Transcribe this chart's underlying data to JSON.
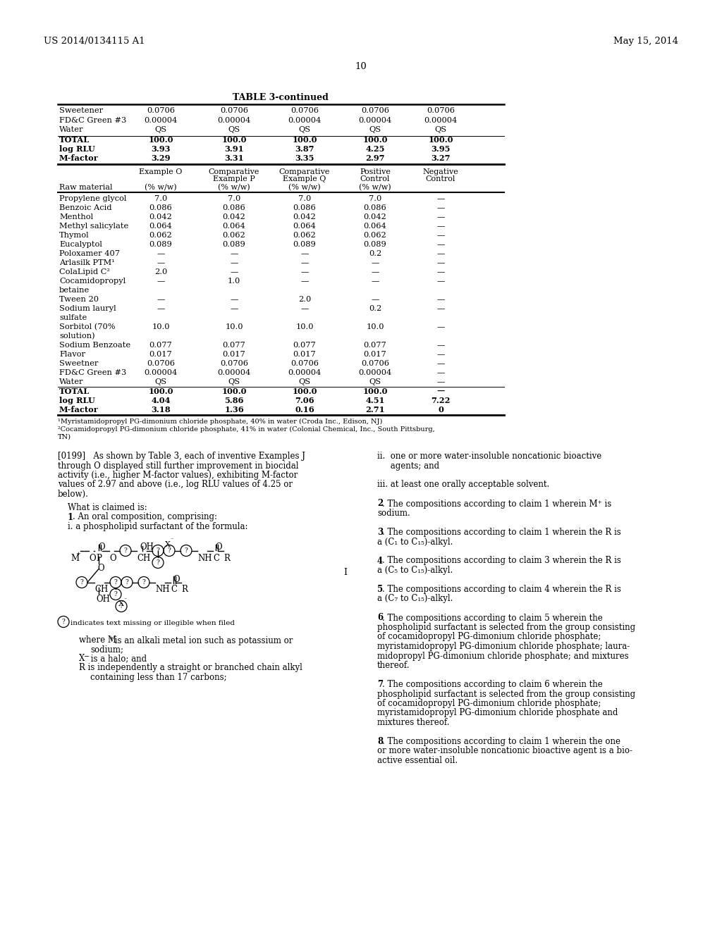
{
  "page_header_left": "US 2014/0134115 A1",
  "page_header_right": "May 15, 2014",
  "page_number": "10",
  "table_title": "TABLE 3-continued",
  "bg_color": "#ffffff",
  "table1_rows": [
    [
      "Sweetener",
      "0.0706",
      "0.0706",
      "0.0706",
      "0.0706",
      "0.0706"
    ],
    [
      "FD&C Green #3",
      "0.00004",
      "0.00004",
      "0.00004",
      "0.00004",
      "0.00004"
    ],
    [
      "Water",
      "QS",
      "QS",
      "QS",
      "QS",
      "QS"
    ],
    [
      "TOTAL",
      "100.0",
      "100.0",
      "100.0",
      "100.0",
      "100.0"
    ],
    [
      "log RLU",
      "3.93",
      "3.91",
      "3.87",
      "4.25",
      "3.95"
    ],
    [
      "M-factor",
      "3.29",
      "3.31",
      "3.35",
      "2.97",
      "3.27"
    ]
  ],
  "table1_bold": [
    3,
    4,
    5
  ],
  "table2_rows": [
    [
      "Propylene glycol",
      "7.0",
      "7.0",
      "7.0",
      "7.0",
      "—"
    ],
    [
      "Benzoic Acid",
      "0.086",
      "0.086",
      "0.086",
      "0.086",
      "—"
    ],
    [
      "Menthol",
      "0.042",
      "0.042",
      "0.042",
      "0.042",
      "—"
    ],
    [
      "Methyl salicylate",
      "0.064",
      "0.064",
      "0.064",
      "0.064",
      "—"
    ],
    [
      "Thymol",
      "0.062",
      "0.062",
      "0.062",
      "0.062",
      "—"
    ],
    [
      "Eucalyptol",
      "0.089",
      "0.089",
      "0.089",
      "0.089",
      "—"
    ],
    [
      "Poloxamer 407",
      "—",
      "—",
      "—",
      "0.2",
      "—"
    ],
    [
      "Arlasilk PTM¹",
      "—",
      "—",
      "—",
      "—",
      "—"
    ],
    [
      "ColaLipid C²",
      "2.0",
      "—",
      "—",
      "—",
      "—"
    ],
    [
      "Cocamidopropyl",
      "—",
      "1.0",
      "—",
      "—",
      "—"
    ],
    [
      "betaine",
      "",
      "",
      "",
      "",
      ""
    ],
    [
      "Tween 20",
      "—",
      "—",
      "2.0",
      "—",
      "—"
    ],
    [
      "Sodium lauryl",
      "—",
      "—",
      "—",
      "0.2",
      "—"
    ],
    [
      "sulfate",
      "",
      "",
      "",
      "",
      ""
    ],
    [
      "Sorbitol (70%",
      "10.0",
      "10.0",
      "10.0",
      "10.0",
      "—"
    ],
    [
      "solution)",
      "",
      "",
      "",
      "",
      ""
    ],
    [
      "Sodium Benzoate",
      "0.077",
      "0.077",
      "0.077",
      "0.077",
      "—"
    ],
    [
      "Flavor",
      "0.017",
      "0.017",
      "0.017",
      "0.017",
      "—"
    ],
    [
      "Sweetner",
      "0.0706",
      "0.0706",
      "0.0706",
      "0.0706",
      "—"
    ],
    [
      "FD&C Green #3",
      "0.00004",
      "0.00004",
      "0.00004",
      "0.00004",
      "—"
    ],
    [
      "Water",
      "QS",
      "QS",
      "QS",
      "QS",
      "—"
    ],
    [
      "TOTAL",
      "100.0",
      "100.0",
      "100.0",
      "100.0",
      "—"
    ],
    [
      "log RLU",
      "4.04",
      "5.86",
      "7.06",
      "4.51",
      "7.22"
    ],
    [
      "M-factor",
      "3.18",
      "1.36",
      "0.16",
      "2.71",
      "0"
    ]
  ],
  "table2_bold": [
    21,
    22,
    23
  ],
  "table2_underline_before": [
    21
  ],
  "footnotes": [
    "¹Myristamidopropyl PG-dimonium chloride phosphate, 40% in water (Croda Inc., Edison, NJ)",
    "²Cocamidopropyl PG-dimonium chloride phosphate, 41% in water (Colonial Chemical, Inc., South Pittsburg,",
    "TN)"
  ],
  "left_para_lines": [
    "[0199]   As shown by Table 3, each of inventive Examples J",
    "through O displayed still further improvement in biocidal",
    "activity (i.e., higher M-factor values), exhibiting M-factor",
    "values of 2.97 and above (i.e., log RLU values of 4.25 or",
    "below)."
  ],
  "left_claims": [
    "    What is claimed is:",
    "    ±. An oral composition, comprising:",
    "    i. a phospholipid surfactant of the formula:"
  ],
  "where_lines": [
    "where M⁺ is an alkali metal ion such as potassium or",
    "    sodium;",
    "X⁻ is a halo; and",
    "R is independently a straight or branched chain alkyl",
    "    containing less than 17 carbons;"
  ],
  "right_col_lines": [
    [
      "ii.  one or more water-insoluble noncationic bioactive",
      false
    ],
    [
      "     agents; and",
      false
    ],
    [
      "",
      false
    ],
    [
      "iii. at least one orally acceptable solvent.",
      false
    ],
    [
      "",
      false
    ],
    [
      "2. The compositions according to claim 1 wherein M⁺ is",
      false
    ],
    [
      "sodium.",
      false
    ],
    [
      "",
      false
    ],
    [
      "3. The compositions according to claim 1 wherein the R is",
      false
    ],
    [
      "a (C₁ to C₁₅)-alkyl.",
      false
    ],
    [
      "",
      false
    ],
    [
      "4. The compositions according to claim 3 wherein the R is",
      false
    ],
    [
      "a (C₅ to C₁₅)-alkyl.",
      false
    ],
    [
      "",
      false
    ],
    [
      "5. The compositions according to claim 4 wherein the R is",
      false
    ],
    [
      "a (C₇ to C₁₅)-alkyl.",
      false
    ],
    [
      "",
      false
    ],
    [
      "6. The compositions according to claim 5 wherein the",
      false
    ],
    [
      "phospholipid surfactant is selected from the group consisting",
      false
    ],
    [
      "of cocamidopropyl PG-dimonium chloride phosphate;",
      false
    ],
    [
      "myristamidopropyl PG-dimonium chloride phosphate; laura-",
      false
    ],
    [
      "midopropyl PG-dimonium chloride phosphate; and mixtures",
      false
    ],
    [
      "thereof.",
      false
    ],
    [
      "",
      false
    ],
    [
      "7. The compositions according to claim 6 wherein the",
      false
    ],
    [
      "phospholipid surfactant is selected from the group consisting",
      false
    ],
    [
      "of cocamidopropyl PG-dimonium chloride phosphate;",
      false
    ],
    [
      "myristamidopropyl PG-dimonium chloride phosphate and",
      false
    ],
    [
      "mixtures thereof.",
      false
    ],
    [
      "",
      false
    ],
    [
      "8. The compositions according to claim 1 wherein the one",
      false
    ],
    [
      "or more water-insoluble noncationic bioactive agent is a bio-",
      false
    ],
    [
      "active essential oil.",
      false
    ]
  ],
  "right_bold_numbers": [
    "2",
    "3",
    "4",
    "5",
    "6",
    "7",
    "8"
  ]
}
